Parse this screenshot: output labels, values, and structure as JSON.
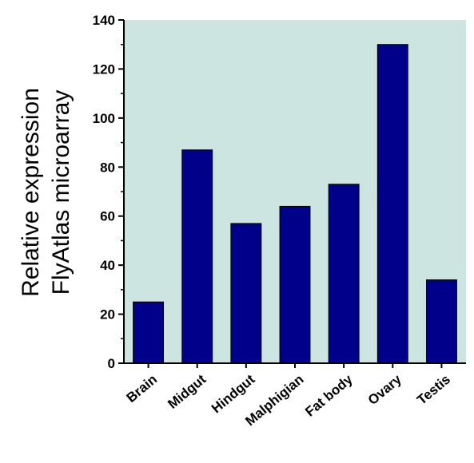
{
  "chart_data": {
    "type": "bar",
    "categories": [
      "Brain",
      "Midgut",
      "Hindgut",
      "Malphigian",
      "Fat body",
      "Ovary",
      "Testis"
    ],
    "values": [
      25,
      87,
      57,
      64,
      73,
      130,
      34
    ],
    "ylabel_lines": [
      "Relative expression",
      "FlyAtlas microarray"
    ],
    "ylim": [
      0,
      140
    ],
    "yticks": [
      0,
      20,
      40,
      60,
      80,
      100,
      120,
      140
    ],
    "grid": false,
    "colors": {
      "plot_background": "#cde5e0",
      "bar": "#00008b",
      "bar_edge": "#000000"
    }
  }
}
